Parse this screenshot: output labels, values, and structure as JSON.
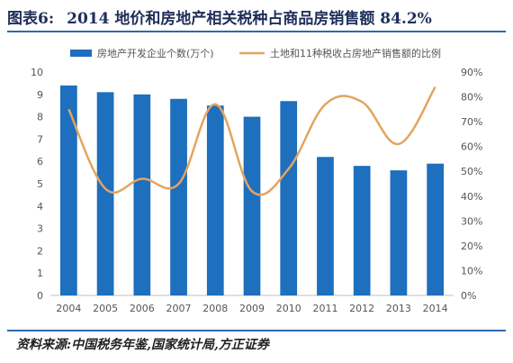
{
  "header": {
    "label": "图表6:",
    "title": "2014 地价和房地产相关税种占商品房销售额 84.2%"
  },
  "footer": {
    "source": "资料来源:中国税务年鉴,国家统计局,方正证券"
  },
  "colors": {
    "bar": "#1e6fbd",
    "line": "#e3a460",
    "rule": "#2f6aa8"
  },
  "chart_data": {
    "type": "bar",
    "categories": [
      "2004",
      "2005",
      "2006",
      "2007",
      "2008",
      "2009",
      "2010",
      "2011",
      "2012",
      "2013",
      "2014"
    ],
    "series": [
      {
        "name": "房地产开发企业个数(万个)",
        "type": "bar",
        "axis": "left",
        "values": [
          9.4,
          9.1,
          9.0,
          8.8,
          8.5,
          8.0,
          8.7,
          6.2,
          5.8,
          5.6,
          5.9
        ]
      },
      {
        "name": "土地和11种税收占房地产销售额的比例",
        "type": "line",
        "axis": "right",
        "values": [
          75,
          43,
          47,
          45,
          77,
          42,
          51,
          77,
          78,
          61,
          84
        ]
      }
    ],
    "ylim_left": [
      0,
      10
    ],
    "yticks_left": [
      "0",
      "1",
      "2",
      "3",
      "4",
      "5",
      "6",
      "7",
      "8",
      "9",
      "10"
    ],
    "ylim_right": [
      0,
      90
    ],
    "yticks_right": [
      "0%",
      "10%",
      "20%",
      "30%",
      "40%",
      "50%",
      "60%",
      "70%",
      "80%",
      "90%"
    ],
    "legend": "top",
    "grid": false
  }
}
